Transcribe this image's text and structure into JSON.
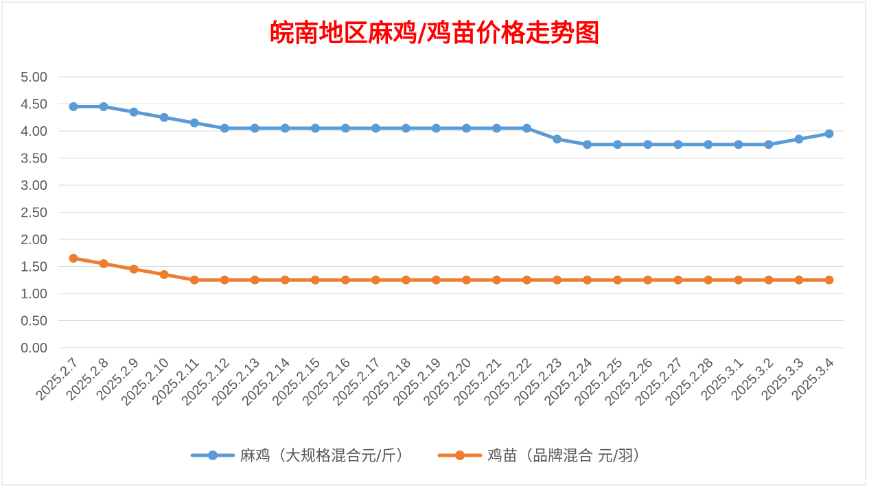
{
  "chart_data": {
    "type": "line",
    "title": "皖南地区麻鸡/鸡苗价格走势图",
    "xlabel": "",
    "ylabel": "",
    "ylim": [
      0,
      5
    ],
    "y_ticks": [
      "0.00",
      "0.50",
      "1.00",
      "1.50",
      "2.00",
      "2.50",
      "3.00",
      "3.50",
      "4.00",
      "4.50",
      "5.00"
    ],
    "categories": [
      "2025.2.7",
      "2025.2.8",
      "2025.2.9",
      "2025.2.10",
      "2025.2.11",
      "2025.2.12",
      "2025.2.13",
      "2025.2.14",
      "2025.2.15",
      "2025.2.16",
      "2025.2.17",
      "2025.2.18",
      "2025.2.19",
      "2025.2.20",
      "2025.2.21",
      "2025.2.22",
      "2025.2.23",
      "2025.2.24",
      "2025.2.25",
      "2025.2.26",
      "2025.2.27",
      "2025.2.28",
      "2025.3.1",
      "2025.3.2",
      "2025.3.3",
      "2025.3.4"
    ],
    "grid": true,
    "legend_position": "bottom",
    "series": [
      {
        "name": "麻鸡（大规格混合元/斤）",
        "color": "#5B9BD5",
        "values": [
          4.45,
          4.45,
          4.35,
          4.25,
          4.15,
          4.05,
          4.05,
          4.05,
          4.05,
          4.05,
          4.05,
          4.05,
          4.05,
          4.05,
          4.05,
          4.05,
          3.85,
          3.75,
          3.75,
          3.75,
          3.75,
          3.75,
          3.75,
          3.75,
          3.85,
          3.95
        ]
      },
      {
        "name": "鸡苗（品牌混合 元/羽）",
        "color": "#ED7D31",
        "values": [
          1.65,
          1.55,
          1.45,
          1.35,
          1.25,
          1.25,
          1.25,
          1.25,
          1.25,
          1.25,
          1.25,
          1.25,
          1.25,
          1.25,
          1.25,
          1.25,
          1.25,
          1.25,
          1.25,
          1.25,
          1.25,
          1.25,
          1.25,
          1.25,
          1.25,
          1.25
        ]
      }
    ],
    "title_color": "#FF0000",
    "gridline_color": "#D9D9D9",
    "text_color": "#595959"
  }
}
